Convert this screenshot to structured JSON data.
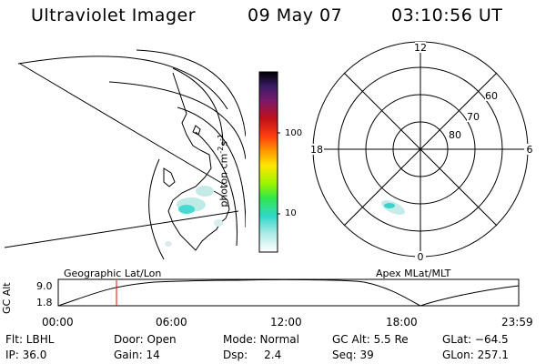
{
  "header": {
    "instrument": "Ultraviolet Imager",
    "date": "09 May 07",
    "time": "03:10:56 UT"
  },
  "colorbar": {
    "unit": "photon cm",
    "unit_exp1": "-2",
    "unit_mid": "s",
    "unit_exp2": "-1",
    "ticks": [
      "100",
      "10"
    ]
  },
  "polar": {
    "mlt_labels": {
      "top": "12",
      "right": "6",
      "bottom": "0",
      "left": "18"
    },
    "lat_labels": [
      "60",
      "70",
      "80"
    ]
  },
  "projection_labels": {
    "left": "Geographic Lat/Lon",
    "right": "Apex MLat/MLT"
  },
  "altitude_plot": {
    "axis_label": "GC Alt",
    "y_ticks": [
      "9.0",
      "1.8"
    ],
    "time_ticks": [
      "00:00",
      "06:00",
      "12:00",
      "18:00",
      "23:59"
    ],
    "marker_color": "#ff0000"
  },
  "status": {
    "filter": "Flt: LBHL",
    "ip": "IP: 36.0",
    "door": "Door: Open",
    "gain": "Gain: 14",
    "mode": "Mode: Normal",
    "dsp_label": "Dsp:",
    "dsp_value": "2.4",
    "gc_alt": "GC Alt: 5.5 Re",
    "seq": "Seq: 39",
    "glat": "GLat: −64.5",
    "glon": "GLon: 257.1"
  }
}
